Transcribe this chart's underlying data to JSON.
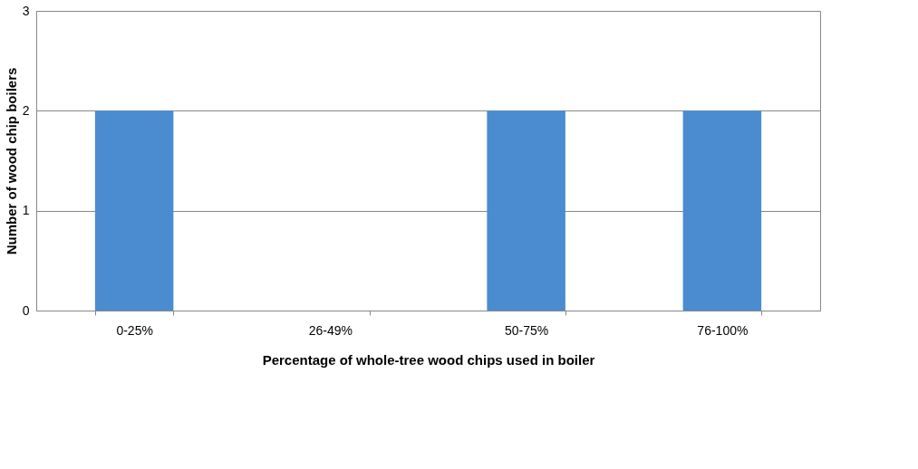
{
  "chart_data": {
    "type": "bar",
    "xlabel": "Percentage of whole-tree wood chips used in boiler",
    "ylabel": "Number of wood chip boilers",
    "categories": [
      "0-25%",
      "26-49%",
      "50-75%",
      "76-100%"
    ],
    "values": [
      2,
      0,
      2,
      2
    ],
    "color": "#4a8ccf",
    "ylim": [
      0,
      3
    ],
    "yticks": [
      0,
      1,
      2,
      3
    ],
    "grid": "y"
  }
}
